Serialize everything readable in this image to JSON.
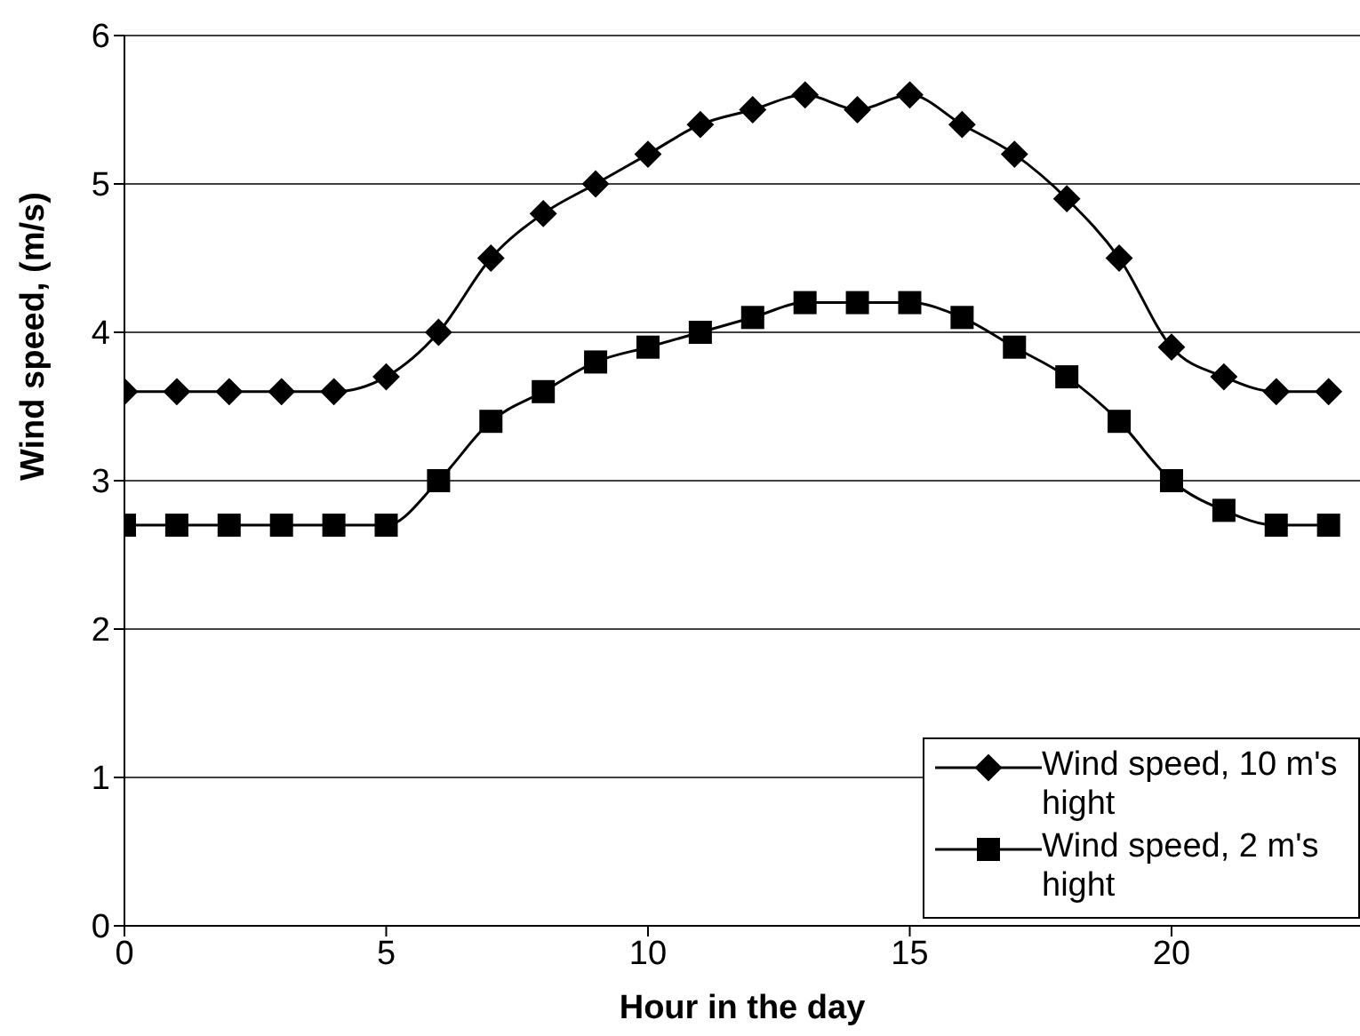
{
  "chart_data": {
    "type": "line",
    "xlabel": "Hour in the day",
    "ylabel": "Wind speed, (m/s)",
    "x": [
      0,
      1,
      2,
      3,
      4,
      5,
      6,
      7,
      8,
      9,
      10,
      11,
      12,
      13,
      14,
      15,
      16,
      17,
      18,
      19,
      20,
      21,
      22,
      23
    ],
    "series": [
      {
        "name": "Wind speed, 10 m's hight",
        "color": "#000000",
        "marker": "diamond",
        "values": [
          3.6,
          3.6,
          3.6,
          3.6,
          3.6,
          3.7,
          4.0,
          4.5,
          4.8,
          5.0,
          5.2,
          5.4,
          5.5,
          5.6,
          5.5,
          5.6,
          5.4,
          5.2,
          4.9,
          4.5,
          3.9,
          3.7,
          3.6,
          3.6
        ]
      },
      {
        "name": "Wind speed, 2 m's hight",
        "color": "#000000",
        "marker": "square",
        "values": [
          2.7,
          2.7,
          2.7,
          2.7,
          2.7,
          2.7,
          3.0,
          3.4,
          3.6,
          3.8,
          3.9,
          4.0,
          4.1,
          4.2,
          4.2,
          4.2,
          4.1,
          3.9,
          3.7,
          3.4,
          3.0,
          2.8,
          2.7,
          2.7
        ]
      }
    ],
    "xlim": [
      0,
      23.6
    ],
    "xticks": [
      0,
      5,
      10,
      15,
      20
    ],
    "ylim": [
      0,
      6
    ],
    "yticks": [
      0,
      1,
      2,
      3,
      4,
      5,
      6
    ],
    "grid": "y",
    "legend": "bottom right",
    "line_style": "solid"
  }
}
